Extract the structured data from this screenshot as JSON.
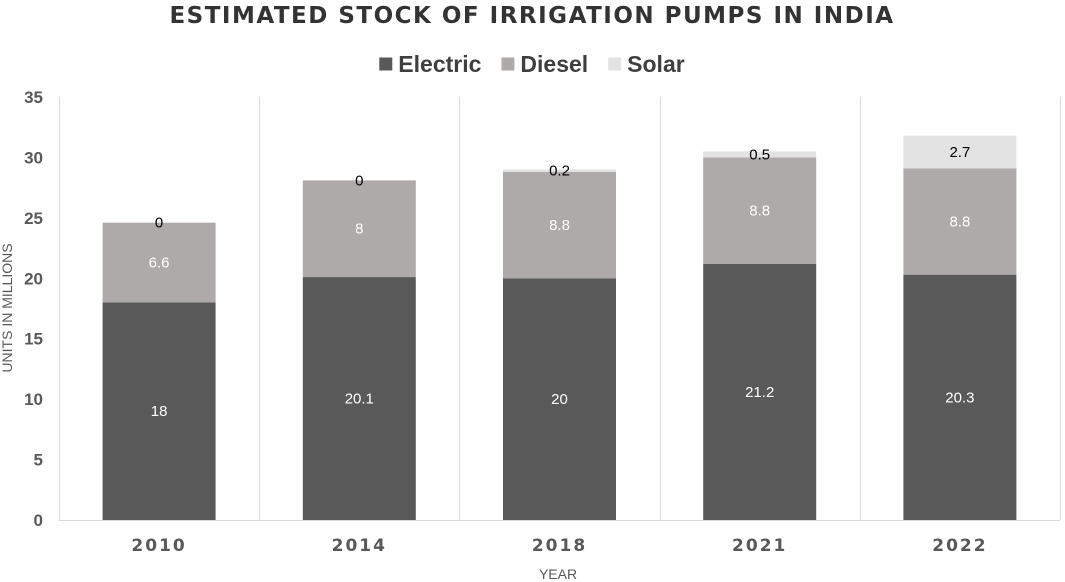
{
  "chart_data": {
    "type": "bar",
    "stacked": true,
    "title": "ESTIMATED STOCK OF IRRIGATION PUMPS IN INDIA",
    "xlabel": "YEAR",
    "ylabel": "UNITS IN MILLIONS",
    "categories": [
      "2010",
      "2014",
      "2018",
      "2021",
      "2022"
    ],
    "ylim": [
      0,
      35
    ],
    "yticks": [
      0,
      5,
      10,
      15,
      20,
      25,
      30,
      35
    ],
    "legend_position": "top-center",
    "grid": "vertical-separators",
    "series": [
      {
        "name": "Electric",
        "color": "#595959",
        "label_color": "#ffffff",
        "values": [
          18,
          20.1,
          20,
          21.2,
          20.3
        ]
      },
      {
        "name": "Diesel",
        "color": "#aeaaaa",
        "label_color": "#ffffff",
        "values": [
          6.6,
          8,
          8.8,
          8.8,
          8.8
        ]
      },
      {
        "name": "Solar",
        "color": "#e3e3e3",
        "label_color": "#000000",
        "values": [
          0,
          0,
          0.2,
          0.5,
          2.7
        ]
      }
    ]
  }
}
